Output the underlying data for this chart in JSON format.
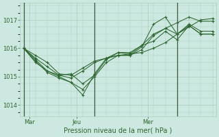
{
  "title": "Pression niveau de la mer( hPa )",
  "background_color": "#cce8e0",
  "grid_color": "#aaccbb",
  "line_color": "#2d6630",
  "ylim": [
    1013.6,
    1017.6
  ],
  "yticks": [
    1014,
    1015,
    1016,
    1017
  ],
  "xlabel_labels": [
    "Mar",
    "Jeu",
    "Mer"
  ],
  "series": [
    [
      1016.0,
      1015.75,
      1015.5,
      1015.1,
      1015.05,
      1015.3,
      1015.55,
      1015.65,
      1015.75,
      1015.8,
      1015.85,
      1016.0,
      1016.2,
      1016.5,
      1016.75,
      1017.0,
      1017.05
    ],
    [
      1016.0,
      1015.65,
      1015.35,
      1015.05,
      1014.95,
      1015.2,
      1015.5,
      1015.65,
      1015.75,
      1015.75,
      1015.95,
      1016.45,
      1016.7,
      1016.9,
      1017.1,
      1016.95,
      1016.95
    ],
    [
      1016.0,
      1015.6,
      1015.2,
      1015.0,
      1014.8,
      1014.55,
      1015.0,
      1015.5,
      1015.75,
      1015.75,
      1016.05,
      1016.85,
      1017.1,
      1016.5,
      1016.85,
      1016.6,
      1016.6
    ],
    [
      1016.0,
      1015.55,
      1015.15,
      1014.95,
      1014.8,
      1014.35,
      1015.1,
      1015.65,
      1015.85,
      1015.85,
      1016.1,
      1016.5,
      1016.7,
      1016.5,
      1016.8,
      1016.5,
      1016.5
    ],
    [
      1016.0,
      1015.5,
      1015.2,
      1015.05,
      1015.1,
      1014.75,
      1015.05,
      1015.6,
      1015.85,
      1015.8,
      1016.1,
      1016.25,
      1016.6,
      1016.3,
      1016.8,
      1016.5,
      1016.5
    ]
  ],
  "n_points": 17,
  "vline_x": [
    0,
    6,
    13
  ],
  "xtick_x": [
    0.5,
    4.5,
    10.5
  ],
  "xlim": [
    -0.3,
    16.3
  ]
}
